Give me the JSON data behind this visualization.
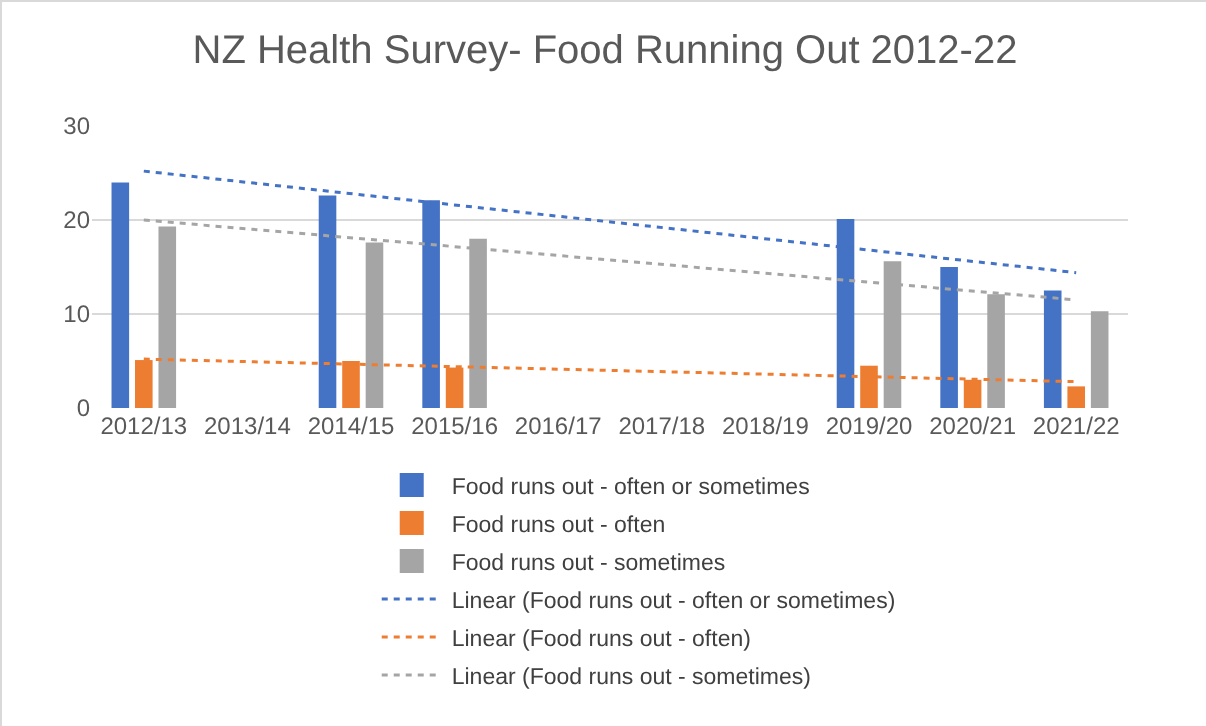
{
  "chart_data": {
    "type": "bar",
    "title": "NZ Health Survey- Food Running Out 2012-22",
    "categories": [
      "2012/13",
      "2013/14",
      "2014/15",
      "2015/16",
      "2016/17",
      "2017/18",
      "2018/19",
      "2019/20",
      "2020/21",
      "2021/22"
    ],
    "series": [
      {
        "name": "Food runs out - often or sometimes",
        "color": "#4472c4",
        "values": [
          24.0,
          null,
          22.6,
          22.1,
          null,
          null,
          null,
          20.1,
          15.0,
          12.5
        ]
      },
      {
        "name": "Food runs out - often",
        "color": "#ed7d31",
        "values": [
          5.1,
          null,
          5.0,
          4.3,
          null,
          null,
          null,
          4.5,
          3.0,
          2.3
        ]
      },
      {
        "name": "Food runs out - sometimes",
        "color": "#a5a5a5",
        "values": [
          19.3,
          null,
          17.6,
          18.0,
          null,
          null,
          null,
          15.6,
          12.1,
          10.3
        ]
      },
      {
        "name": "Linear (Food runs out - often or sometimes)",
        "type": "line",
        "line_style": "dotted",
        "color": "#4472c4",
        "x": [
          "2012/13",
          "2021/22"
        ],
        "values": [
          25.2,
          14.4
        ]
      },
      {
        "name": "Linear (Food runs out - often)",
        "type": "line",
        "line_style": "dotted",
        "color": "#ed7d31",
        "x": [
          "2012/13",
          "2021/22"
        ],
        "values": [
          5.2,
          2.8
        ]
      },
      {
        "name": "Linear (Food runs out - sometimes)",
        "type": "line",
        "line_style": "dotted",
        "color": "#a5a5a5",
        "x": [
          "2012/13",
          "2021/22"
        ],
        "values": [
          20.0,
          11.5
        ]
      }
    ],
    "ylim": [
      0,
      30
    ],
    "yticks": [
      0,
      10,
      20,
      30
    ],
    "grid": "y",
    "legend": "bottom",
    "marker": "none"
  }
}
